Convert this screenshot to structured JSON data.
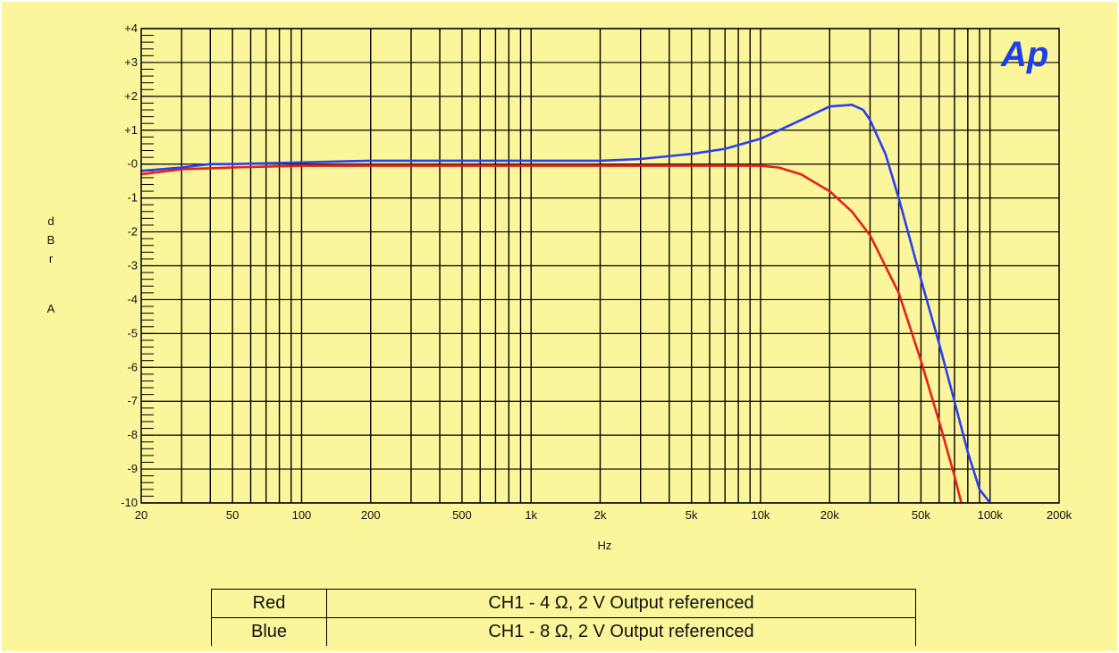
{
  "chart_data": {
    "type": "line",
    "xlabel": "Hz",
    "ylabel": "dBrA",
    "xscale": "log",
    "xlim": [
      20,
      200000
    ],
    "ylim": [
      -10,
      4
    ],
    "grid": true,
    "x_tick_labels": [
      "20",
      "50",
      "100",
      "200",
      "500",
      "1k",
      "2k",
      "5k",
      "10k",
      "20k",
      "50k",
      "100k",
      "200k"
    ],
    "x_tick_values": [
      20,
      50,
      100,
      200,
      500,
      1000,
      2000,
      5000,
      10000,
      20000,
      50000,
      100000,
      200000
    ],
    "y_tick_labels": [
      "+4",
      "+3",
      "+2",
      "+1",
      "-0",
      "-1",
      "-2",
      "-3",
      "-4",
      "-5",
      "-6",
      "-7",
      "-8",
      "-9",
      "-10"
    ],
    "y_tick_values": [
      4,
      3,
      2,
      1,
      0,
      -1,
      -2,
      -3,
      -4,
      -5,
      -6,
      -7,
      -8,
      -9,
      -10
    ],
    "series": [
      {
        "color": "#e8201a",
        "x": [
          20,
          30,
          50,
          100,
          200,
          500,
          1000,
          2000,
          5000,
          8000,
          10000,
          12000,
          15000,
          20000,
          25000,
          30000,
          40000,
          50000,
          60000,
          70000,
          75000
        ],
        "y": [
          -0.3,
          -0.15,
          -0.1,
          -0.05,
          -0.05,
          -0.05,
          -0.05,
          -0.05,
          -0.05,
          -0.05,
          -0.05,
          -0.1,
          -0.3,
          -0.8,
          -1.4,
          -2.1,
          -3.8,
          -5.8,
          -7.6,
          -9.2,
          -10.0
        ]
      },
      {
        "color": "#2a3ff0",
        "x": [
          20,
          30,
          40,
          50,
          100,
          200,
          500,
          1000,
          2000,
          3000,
          5000,
          7000,
          10000,
          15000,
          20000,
          25000,
          28000,
          30000,
          35000,
          40000,
          50000,
          60000,
          70000,
          80000,
          90000,
          100000
        ],
        "y": [
          -0.2,
          -0.1,
          0.0,
          0.0,
          0.05,
          0.1,
          0.1,
          0.1,
          0.1,
          0.15,
          0.3,
          0.45,
          0.75,
          1.3,
          1.7,
          1.75,
          1.6,
          1.3,
          0.3,
          -1.0,
          -3.4,
          -5.3,
          -7.0,
          -8.5,
          -9.6,
          -10.0
        ]
      }
    ]
  },
  "logo_text": "Ap",
  "legend": [
    {
      "name": "Red",
      "description": "CH1 - 4 Ω, 2 V Output referenced"
    },
    {
      "name": "Blue",
      "description": "CH1 - 8 Ω, 2 V Output referenced"
    }
  ]
}
